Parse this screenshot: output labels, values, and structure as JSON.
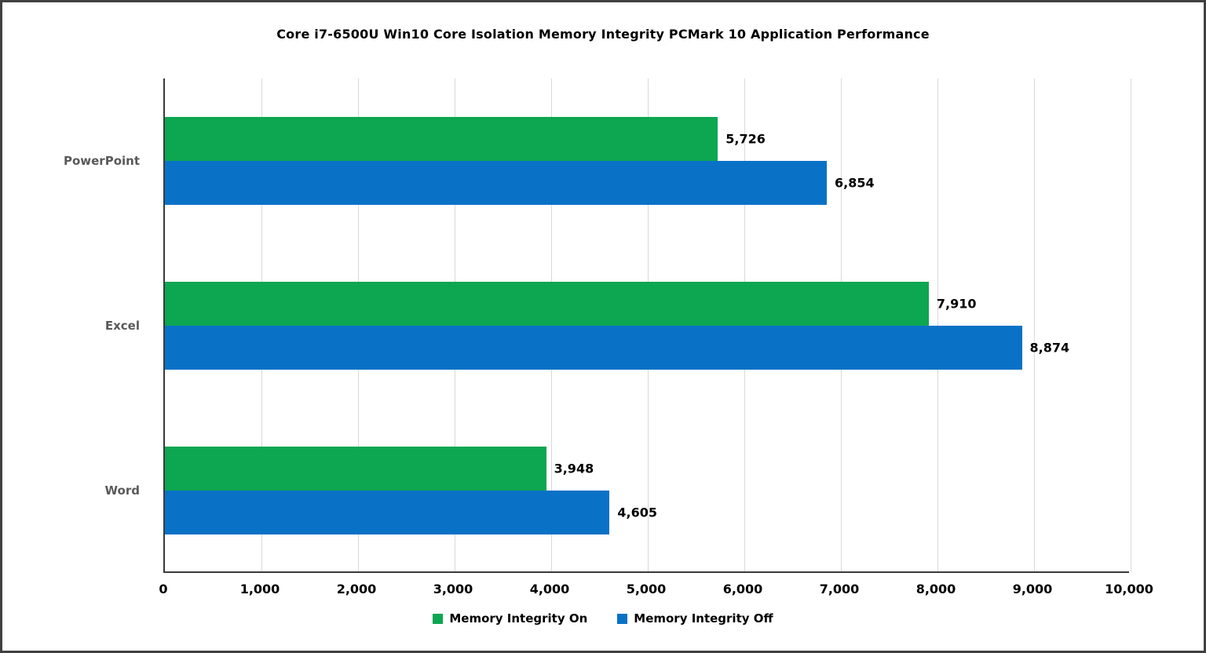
{
  "frame": {
    "border_color": "#404040",
    "background_color": "#ffffff"
  },
  "chart_data": {
    "type": "bar",
    "orientation": "horizontal",
    "title": "Core i7-6500U Win10 Core Isolation Memory Integrity PCMark 10 Application Performance",
    "categories": [
      "PowerPoint",
      "Excel",
      "Word"
    ],
    "series": [
      {
        "name": "Memory Integrity On",
        "color": "#0da651",
        "values": [
          5726,
          7910,
          3948
        ],
        "value_labels": [
          "5,726",
          "7,910",
          "3,948"
        ]
      },
      {
        "name": "Memory Integrity Off",
        "color": "#0a72c6",
        "values": [
          6854,
          8874,
          4605
        ],
        "value_labels": [
          "6,854",
          "8,874",
          "4,605"
        ]
      }
    ],
    "xlim": [
      0,
      10000
    ],
    "x_ticks": [
      0,
      1000,
      2000,
      3000,
      4000,
      5000,
      6000,
      7000,
      8000,
      9000,
      10000
    ],
    "x_tick_labels": [
      "0",
      "1,000",
      "2,000",
      "3,000",
      "4,000",
      "5,000",
      "6,000",
      "7,000",
      "8,000",
      "9,000",
      "10,000"
    ],
    "grid": "vertical",
    "gridline_color": "#d9d9d9",
    "axis_color": "#3a3a3a",
    "category_label_color": "#595959",
    "value_label_color": "#000000",
    "legend_position": "bottom-center"
  }
}
